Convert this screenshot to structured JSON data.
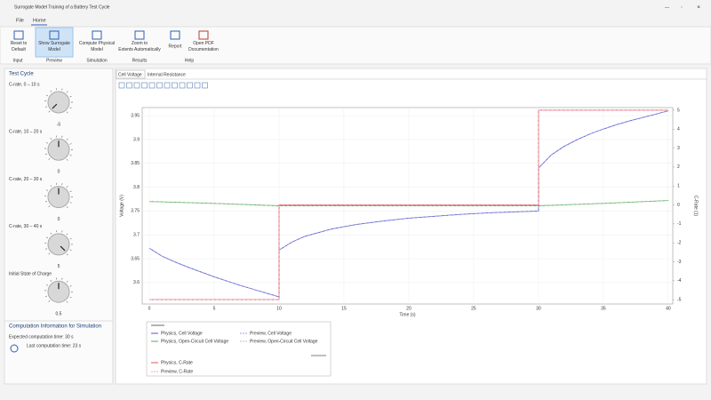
{
  "window": {
    "title": "Surrogate Model Training of a Battery Test Cycle"
  },
  "menu": [
    "File",
    "Home"
  ],
  "ribbon": {
    "buttons": [
      "Reset to Default",
      "Show Surrogate Model",
      "Compute Physical Model",
      "Zoom to Extents Automatically",
      "Report",
      "Open PDF Documentation"
    ],
    "groups": [
      "Input",
      "Preview",
      "Simulation",
      "Results",
      "Help"
    ]
  },
  "left_panel": {
    "title": "Test Cycle",
    "knobs": [
      {
        "label": "C-rate, 0 – 10 s",
        "value": -5
      },
      {
        "label": "C-rate, 10 – 20 s",
        "value": 0
      },
      {
        "label": "C-rate, 20 – 30 s",
        "value": 0
      },
      {
        "label": "C-rate, 30 – 40 s",
        "value": 5
      },
      {
        "label": "Initial State of Charge",
        "value": 0.5
      }
    ],
    "info_title": "Computation Information for Simulation",
    "info": [
      "Expected computation time:  30 s",
      "Last computation time: 23 s"
    ]
  },
  "tabs": [
    "Cell Voltage",
    "Internal Resistance"
  ],
  "chart_data": {
    "type": "line",
    "xlabel": "Time (s)",
    "ylabel": "Voltage (V)",
    "y2label": "C-Rate (1)",
    "xlim": [
      -0.55,
      40.35
    ],
    "xticks": [
      0,
      5,
      10,
      15,
      20,
      25,
      30,
      35,
      40
    ],
    "ylim": [
      3.555,
      3.967
    ],
    "yticks": [
      3.6,
      3.65,
      3.7,
      3.75,
      3.8,
      3.85,
      3.9,
      3.95
    ],
    "y2lim": [
      -5.23,
      5.14
    ],
    "y2ticks": [
      -5,
      -4,
      -3,
      -2,
      -1,
      0,
      1,
      2,
      3,
      4,
      5
    ],
    "grid": true,
    "series": [
      {
        "name": "Physics, Cell Voltage",
        "color": "#4a5bd0",
        "dashed": false,
        "x": [
          0,
          1,
          2,
          3,
          4,
          5,
          6,
          7,
          8,
          9,
          10,
          10,
          11,
          12,
          14,
          16,
          18,
          20,
          22,
          24,
          26,
          28,
          30,
          30,
          31,
          32,
          33,
          34,
          35,
          36,
          37,
          38,
          39,
          40
        ],
        "values": [
          3.672,
          3.655,
          3.643,
          3.632,
          3.622,
          3.612,
          3.603,
          3.594,
          3.586,
          3.578,
          3.57,
          3.668,
          3.685,
          3.697,
          3.712,
          3.722,
          3.729,
          3.735,
          3.739,
          3.743,
          3.746,
          3.748,
          3.75,
          3.84,
          3.868,
          3.886,
          3.9,
          3.912,
          3.922,
          3.931,
          3.939,
          3.946,
          3.953,
          3.96
        ]
      },
      {
        "name": "Preview, Cell Voltage",
        "color": "#a99be0",
        "dashed": true,
        "x": [
          0,
          1,
          2,
          3,
          4,
          5,
          6,
          7,
          8,
          9,
          10,
          10,
          11,
          12,
          14,
          16,
          18,
          20,
          22,
          24,
          26,
          28,
          30,
          30,
          31,
          32,
          33,
          34,
          35,
          36,
          37,
          38,
          39,
          40
        ],
        "values": [
          3.672,
          3.655,
          3.643,
          3.632,
          3.622,
          3.612,
          3.603,
          3.594,
          3.586,
          3.578,
          3.57,
          3.668,
          3.685,
          3.697,
          3.712,
          3.722,
          3.729,
          3.735,
          3.739,
          3.743,
          3.746,
          3.748,
          3.75,
          3.84,
          3.868,
          3.886,
          3.9,
          3.912,
          3.922,
          3.931,
          3.939,
          3.946,
          3.953,
          3.96
        ]
      },
      {
        "name": "Physics, Open-Circuit Cell Voltage",
        "color": "#5aa85a",
        "dashed": false,
        "x": [
          0,
          5,
          10,
          20,
          30,
          35,
          40
        ],
        "values": [
          3.77,
          3.766,
          3.761,
          3.761,
          3.761,
          3.766,
          3.772
        ]
      },
      {
        "name": "Preview, Open-Circuit Cell Voltage",
        "color": "#9fd09f",
        "dashed": true,
        "x": [
          0,
          5,
          10,
          20,
          30,
          35,
          40
        ],
        "values": [
          3.77,
          3.766,
          3.761,
          3.761,
          3.761,
          3.766,
          3.772
        ]
      },
      {
        "name": "Physics, C-Rate",
        "color": "#e05555",
        "dashed": false,
        "axis": "y2",
        "x": [
          0,
          10,
          10,
          30,
          30,
          40
        ],
        "values": [
          -5,
          -5,
          0,
          0,
          5,
          5
        ]
      },
      {
        "name": "Preview, C-Rate",
        "color": "#f0a0b0",
        "dashed": true,
        "axis": "y2",
        "x": [
          0,
          10,
          10,
          30,
          30,
          40
        ],
        "values": [
          -5,
          -5,
          0,
          0,
          5,
          5
        ]
      }
    ]
  }
}
